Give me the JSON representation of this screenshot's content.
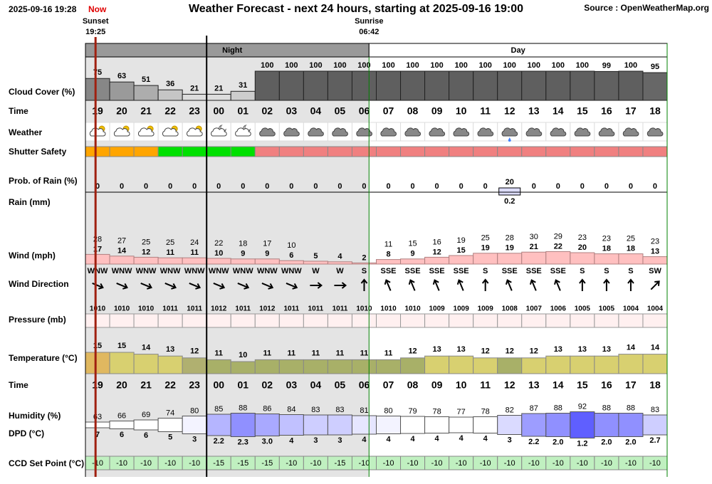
{
  "header": {
    "timestamp": "2025-09-16 19:28",
    "now": "Now",
    "title": "Weather Forecast - next 24 hours, starting at 2025-09-16 19:00",
    "source": "Source : OpenWeatherMap.org"
  },
  "sun": {
    "sunset_label": "Sunset",
    "sunset": "19:25",
    "sunrise_label": "Sunrise",
    "sunrise": "06:42"
  },
  "periods": {
    "night": "Night",
    "day": "Day"
  },
  "row_labels": {
    "cloud_cover": "Cloud Cover (%)",
    "time": "Time",
    "weather": "Weather",
    "shutter_safety": "Shutter Safety",
    "prob_rain": "Prob. of Rain (%)",
    "rain": "Rain (mm)",
    "wind": "Wind (mph)",
    "wind_direction": "Wind Direction",
    "pressure": "Pressure (mb)",
    "temperature": "Temperature (°C)",
    "time2": "Time",
    "humidity": "Humidity (%)",
    "dpd": "DPD (°C)",
    "ccd": "CCD Set Point (°C)"
  },
  "hours": [
    "19",
    "20",
    "21",
    "22",
    "23",
    "00",
    "01",
    "02",
    "03",
    "04",
    "05",
    "06",
    "07",
    "08",
    "09",
    "10",
    "11",
    "12",
    "13",
    "14",
    "15",
    "16",
    "17",
    "18"
  ],
  "cloud_cover": [
    75,
    63,
    51,
    36,
    21,
    21,
    31,
    100,
    100,
    100,
    100,
    100,
    100,
    100,
    100,
    100,
    100,
    100,
    100,
    100,
    100,
    99,
    100,
    95
  ],
  "shutter_safety": [
    "#ffa500",
    "#ffa500",
    "#ffa500",
    "#00e000",
    "#00e000",
    "#00e000",
    "#00e000",
    "#f08080",
    "#f08080",
    "#f08080",
    "#f08080",
    "#f08080",
    "#f08080",
    "#f08080",
    "#f08080",
    "#f08080",
    "#f08080",
    "#f08080",
    "#f08080",
    "#f08080",
    "#f08080",
    "#f08080",
    "#f08080",
    "#f08080"
  ],
  "prob_rain": [
    0,
    0,
    0,
    0,
    0,
    0,
    0,
    0,
    0,
    0,
    0,
    0,
    0,
    0,
    0,
    0,
    0,
    20,
    0,
    0,
    0,
    0,
    0,
    0
  ],
  "rain": [
    null,
    null,
    null,
    null,
    null,
    null,
    null,
    null,
    null,
    null,
    null,
    null,
    null,
    null,
    null,
    null,
    null,
    0.2,
    null,
    null,
    null,
    null,
    null,
    null
  ],
  "wind_gust": [
    28,
    27,
    25,
    25,
    24,
    22,
    18,
    17,
    10,
    null,
    null,
    null,
    11,
    15,
    16,
    19,
    25,
    28,
    30,
    29,
    23,
    23,
    25,
    23
  ],
  "wind_speed": [
    17,
    14,
    12,
    11,
    11,
    10,
    9,
    9,
    6,
    5,
    4,
    2,
    8,
    9,
    12,
    15,
    19,
    19,
    21,
    22,
    20,
    18,
    18,
    13
  ],
  "wind_direction": [
    "WNW",
    "WNW",
    "WNW",
    "WNW",
    "WNW",
    "WNW",
    "WNW",
    "WNW",
    "WNW",
    "W",
    "W",
    "S",
    "SSE",
    "SSE",
    "SSE",
    "SSE",
    "S",
    "SSE",
    "SSE",
    "SSE",
    "S",
    "S",
    "S",
    "SW"
  ],
  "pressure": [
    1010,
    1010,
    1010,
    1011,
    1011,
    1012,
    1011,
    1012,
    1011,
    1011,
    1011,
    1010,
    1010,
    1010,
    1009,
    1009,
    1009,
    1008,
    1007,
    1006,
    1005,
    1005,
    1004,
    1004
  ],
  "temperature": {
    "values": [
      15,
      15,
      14,
      13,
      12,
      11,
      10,
      11,
      11,
      11,
      11,
      11,
      11,
      12,
      13,
      13,
      12,
      12,
      12,
      13,
      13,
      13,
      14,
      14
    ],
    "colors": [
      "#e0b860",
      "#d8d070",
      "#d8d070",
      "#d8d070",
      "#b0b070",
      "#a8b068",
      "#a8b068",
      "#a8b068",
      "#a8b068",
      "#a8b068",
      "#a8b068",
      "#a8b068",
      "#a8b068",
      "#a8b068",
      "#d8d070",
      "#d8d070",
      "#d8d070",
      "#a8b068",
      "#d8d070",
      "#d8d070",
      "#d8d070",
      "#d8d070",
      "#d8d070",
      "#d8d070"
    ]
  },
  "humidity": [
    63,
    66,
    69,
    74,
    80,
    85,
    88,
    86,
    84,
    83,
    83,
    81,
    80,
    79,
    78,
    77,
    78,
    82,
    87,
    88,
    92,
    88,
    88,
    83
  ],
  "dpd": {
    "values": [
      7,
      6,
      6,
      5,
      3,
      2.2,
      2.3,
      3.0,
      4,
      3,
      3,
      4,
      4,
      4,
      4,
      4,
      4,
      3,
      2.2,
      2.0,
      1.2,
      2.0,
      2.0,
      2.7
    ],
    "value_labels": [
      "7",
      "6",
      "6",
      "5",
      "3",
      "2.2",
      "2.3",
      "3.0",
      "4",
      "3",
      "3",
      "4",
      "4",
      "4",
      "4",
      "4",
      "4",
      "3",
      "2.2",
      "2.0",
      "1.2",
      "2.0",
      "2.0",
      "2.7"
    ]
  },
  "ccd_set_point": [
    -10,
    -10,
    -10,
    -10,
    -10,
    -15,
    -15,
    -15,
    -10,
    -10,
    -15,
    -10,
    -10,
    -10,
    -10,
    -10,
    -10,
    -10,
    -10,
    -10,
    -10,
    -10,
    -10,
    -10
  ]
}
